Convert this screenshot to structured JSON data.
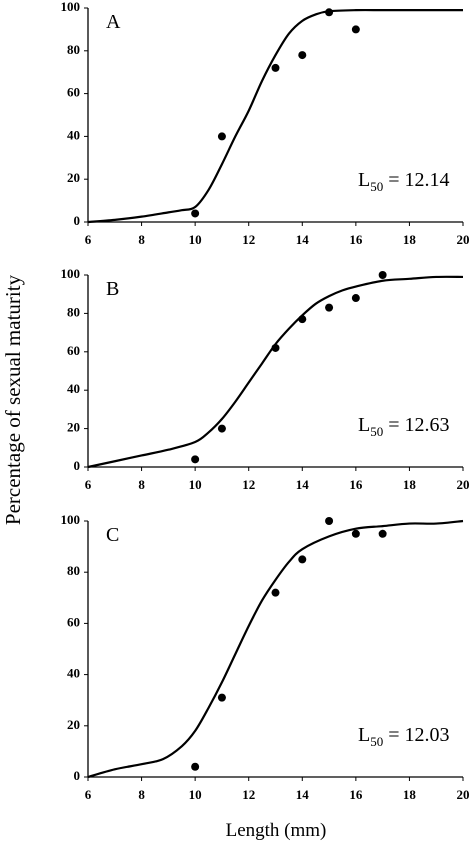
{
  "ylabel": "Percentage of sexual maturity",
  "xlabel": "Length (mm)",
  "chart_data": [
    {
      "type": "line",
      "panel_label": "A",
      "annotation": {
        "text": "L",
        "subscript": "50",
        "suffix": " = 12.14"
      },
      "xlim": [
        6,
        20
      ],
      "ylim": [
        0,
        100
      ],
      "xticks": [
        6,
        8,
        10,
        12,
        14,
        16,
        18,
        20
      ],
      "yticks": [
        0,
        20,
        40,
        60,
        80,
        100
      ],
      "color": "#000000",
      "points": {
        "x": [
          10,
          11,
          13,
          14,
          15,
          16
        ],
        "values": [
          4,
          40,
          72,
          78,
          98,
          90
        ]
      },
      "fit": {
        "x": [
          6,
          7,
          8,
          9,
          9.5,
          10,
          10.5,
          11,
          11.5,
          12,
          12.5,
          13,
          13.5,
          14,
          14.5,
          15,
          16,
          17,
          18,
          19,
          20
        ],
        "values": [
          0,
          1,
          2.5,
          4.5,
          5.5,
          7,
          15,
          27,
          40,
          52,
          66,
          78,
          88,
          94,
          97,
          98.5,
          99,
          99,
          99,
          99,
          99
        ]
      }
    },
    {
      "type": "line",
      "panel_label": "B",
      "annotation": {
        "text": "L",
        "subscript": "50",
        "suffix": " = 12.63"
      },
      "xlim": [
        6,
        20
      ],
      "ylim": [
        0,
        100
      ],
      "xticks": [
        6,
        8,
        10,
        12,
        14,
        16,
        18,
        20
      ],
      "yticks": [
        0,
        20,
        40,
        60,
        80,
        100
      ],
      "color": "#000000",
      "points": {
        "x": [
          10,
          11,
          13,
          14,
          15,
          16,
          17
        ],
        "values": [
          4,
          20,
          62,
          77,
          83,
          88,
          100
        ]
      },
      "fit": {
        "x": [
          6,
          7,
          8,
          9,
          10,
          10.5,
          11,
          11.5,
          12,
          12.5,
          13,
          13.5,
          14,
          14.5,
          15,
          15.5,
          16,
          17,
          18,
          19,
          20
        ],
        "values": [
          0,
          3,
          6,
          9,
          13,
          18,
          25,
          34,
          44,
          54,
          64,
          72,
          79,
          85,
          89,
          92,
          94,
          97,
          98,
          99,
          99
        ]
      }
    },
    {
      "type": "line",
      "panel_label": "C",
      "annotation": {
        "text": "L",
        "subscript": "50",
        "suffix": " = 12.03"
      },
      "xlim": [
        6,
        20
      ],
      "ylim": [
        0,
        100
      ],
      "xticks": [
        6,
        8,
        10,
        12,
        14,
        16,
        18,
        20
      ],
      "yticks": [
        0,
        20,
        40,
        60,
        80,
        100
      ],
      "color": "#000000",
      "points": {
        "x": [
          10,
          11,
          13,
          14,
          15,
          16,
          17
        ],
        "values": [
          4,
          31,
          72,
          85,
          100,
          95,
          95
        ]
      },
      "fit": {
        "x": [
          6,
          7,
          8,
          8.8,
          9.5,
          10,
          10.5,
          11,
          11.5,
          12,
          12.5,
          13,
          13.5,
          14,
          15,
          16,
          17,
          18,
          19,
          20
        ],
        "values": [
          0,
          3,
          5,
          7,
          12,
          18,
          27,
          37,
          48,
          59,
          69,
          77,
          84,
          89,
          94,
          97,
          98,
          99,
          99,
          100
        ]
      }
    }
  ]
}
